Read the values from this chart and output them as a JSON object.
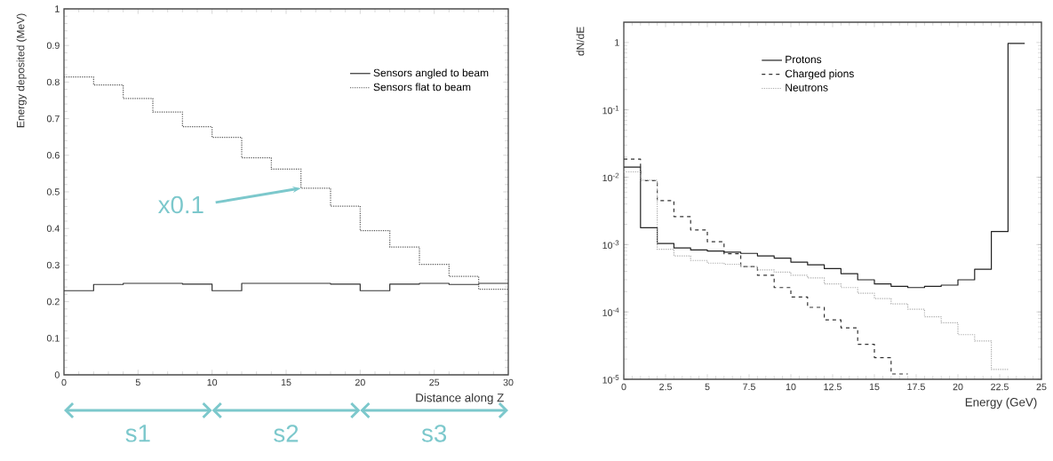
{
  "chart_data": [
    {
      "type": "histogram",
      "xlabel": "Distance along Z",
      "ylabel": "Energy deposited (MeV)",
      "bins": [
        0,
        2,
        4,
        6,
        8,
        10,
        12,
        14,
        16,
        18,
        20,
        22,
        24,
        26,
        28,
        30
      ],
      "series": [
        {
          "name": "Sensors angled to beam",
          "color": "#333333",
          "line_style": "solid",
          "values": [
            0.23,
            0.247,
            0.25,
            0.25,
            0.248,
            0.23,
            0.25,
            0.25,
            0.25,
            0.248,
            0.23,
            0.248,
            0.25,
            0.247,
            0.25
          ]
        },
        {
          "name": "Sensors flat to beam",
          "color": "#555555",
          "line_style": "dotted",
          "values": [
            0.814,
            0.792,
            0.755,
            0.718,
            0.678,
            0.649,
            0.593,
            0.562,
            0.51,
            0.461,
            0.394,
            0.349,
            0.302,
            0.269,
            0.234
          ]
        }
      ],
      "xlim": [
        0,
        30
      ],
      "ylim": [
        0,
        1
      ],
      "xticks": [
        0,
        5,
        10,
        15,
        20,
        25,
        30
      ],
      "yticks": [
        0,
        0.1,
        0.2,
        0.3,
        0.4,
        0.5,
        0.6,
        0.7,
        0.8,
        0.9,
        1
      ],
      "legend": "top right",
      "annotations": [
        {
          "text": "x0.1",
          "x": 16,
          "y": 0.51
        },
        "s1",
        "s2",
        "s3"
      ]
    },
    {
      "type": "histogram",
      "xlabel": "Energy (GeV)",
      "ylabel": "dN/dE",
      "log": "y",
      "bins": [
        0,
        1,
        2,
        3,
        4,
        5,
        6,
        7,
        8,
        9,
        10,
        11,
        12,
        13,
        14,
        15,
        16,
        17,
        18,
        19,
        20,
        21,
        22,
        23,
        24
      ],
      "series": [
        {
          "name": "Protons",
          "color": "#222222",
          "line_style": "solid",
          "values": [
            0.0141,
            0.00178,
            0.00104,
            0.00089,
            0.00083,
            0.0008,
            0.00077,
            0.00074,
            0.00068,
            0.00063,
            0.00055,
            0.0005,
            0.00044,
            0.00037,
            0.0003,
            0.00026,
            0.00024,
            0.00023,
            0.00024,
            0.00025,
            0.0003,
            0.00043,
            0.00156,
            0.97
          ]
        },
        {
          "name": "Charged pions",
          "color": "#333333",
          "line_style": "dashed",
          "bins": [
            0,
            1,
            2,
            3,
            4,
            5,
            6,
            7,
            8,
            9,
            10,
            11,
            12,
            13,
            14,
            15,
            16,
            17
          ],
          "values": [
            0.0186,
            0.0089,
            0.0045,
            0.0026,
            0.00165,
            0.0011,
            0.00073,
            0.00047,
            0.00035,
            0.00023,
            0.000167,
            0.000117,
            7.6e-05,
            5.8e-05,
            3.3e-05,
            2.1e-05,
            1.2e-05
          ]
        },
        {
          "name": "Neutrons",
          "color": "#aaaaaa",
          "line_style": "dotted",
          "bins": [
            0,
            1,
            2,
            3,
            4,
            5,
            6,
            7,
            8,
            9,
            10,
            11,
            12,
            13,
            14,
            15,
            16,
            17,
            18,
            19,
            20,
            21,
            22,
            23
          ],
          "values": [
            0.012,
            0.009,
            0.00085,
            0.00068,
            0.00058,
            0.00053,
            0.00051,
            0.00047,
            0.00042,
            0.00039,
            0.00035,
            0.00032,
            0.00026,
            0.00023,
            0.00019,
            0.000158,
            0.000132,
            0.00011,
            8.5e-05,
            6.9e-05,
            4.6e-05,
            3.7e-05,
            1.4e-05
          ]
        }
      ],
      "xlim": [
        0,
        25
      ],
      "ylim": [
        1e-05,
        2
      ],
      "xticks": [
        0,
        2.5,
        5,
        7.5,
        10,
        12.5,
        15,
        17.5,
        20,
        22.5,
        25
      ],
      "yticks": [
        {
          "value": 1e-05,
          "label": "10$^{-5}$"
        },
        {
          "value": 0.0001,
          "label": "10$^{-4}$"
        },
        {
          "value": 0.001,
          "label": "10$^{-3}$"
        },
        {
          "value": 0.01,
          "label": "10$^{-2}$"
        },
        {
          "value": 0.1,
          "label": "10$^{-1}$"
        },
        1
      ],
      "legend": "top"
    }
  ]
}
